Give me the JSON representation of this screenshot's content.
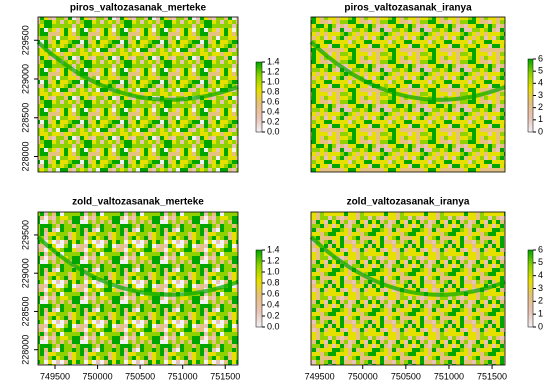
{
  "chart_data": [
    {
      "type": "raster",
      "title": "piros_valtozasanak_merteke",
      "xlim": [
        749300,
        751650
      ],
      "ylim": [
        227800,
        229800
      ],
      "yticks": [
        228000,
        228500,
        229000,
        229500
      ],
      "zlim": [
        0,
        1.4
      ],
      "zticks": [
        {
          "value": 0,
          "label": "0.0"
        },
        {
          "value": 0.2,
          "label": "0.2"
        },
        {
          "value": 0.4,
          "label": "0.4"
        },
        {
          "value": 0.6,
          "label": "0.6"
        },
        {
          "value": 0.8,
          "label": "0.8"
        },
        {
          "value": 1,
          "label": "1.0"
        },
        {
          "value": 1.2,
          "label": "1.2"
        },
        {
          "value": 1.4,
          "label": "1.4"
        }
      ],
      "colors": [
        "#f2f2f2",
        "#e8c4b8",
        "#e6c080",
        "#e6e000",
        "#8fd200",
        "#00a600"
      ]
    },
    {
      "type": "raster",
      "title": "piros_valtozasanak_iranya",
      "xlim": [
        749400,
        751650
      ],
      "ylim": [
        227800,
        229800
      ],
      "zlim": [
        0,
        6
      ],
      "zticks": [
        0,
        1,
        2,
        3,
        4,
        5,
        6
      ],
      "colors": [
        "#f2f2f2",
        "#e8c4b8",
        "#e6c080",
        "#e6e000",
        "#8fd200",
        "#00a600"
      ]
    },
    {
      "type": "raster",
      "title": "zold_valtozasanak_merteke",
      "xlim": [
        749300,
        751650
      ],
      "ylim": [
        227800,
        229800
      ],
      "xticks": [
        749500,
        750000,
        750500,
        751000,
        751500
      ],
      "yticks": [
        228000,
        228500,
        229000,
        229500
      ],
      "zlim": [
        0,
        1.4
      ],
      "zticks": [
        {
          "value": 0,
          "label": "0.0"
        },
        {
          "value": 0.2,
          "label": "0.2"
        },
        {
          "value": 0.4,
          "label": "0.4"
        },
        {
          "value": 0.6,
          "label": "0.6"
        },
        {
          "value": 0.8,
          "label": "0.8"
        },
        {
          "value": 1,
          "label": "1.0"
        },
        {
          "value": 1.2,
          "label": "1.2"
        },
        {
          "value": 1.4,
          "label": "1.4"
        }
      ],
      "colors": [
        "#f2f2f2",
        "#e8c4b8",
        "#e6c080",
        "#e6e000",
        "#8fd200",
        "#00a600"
      ]
    },
    {
      "type": "raster",
      "title": "zold_valtozasanak_iranya",
      "xlim": [
        749400,
        751650
      ],
      "ylim": [
        227800,
        229800
      ],
      "xticks": [
        749500,
        750000,
        750500,
        751000,
        751500
      ],
      "zlim": [
        0,
        6
      ],
      "zticks": [
        0,
        1,
        2,
        3,
        4,
        5,
        6
      ],
      "colors": [
        "#f2f2f2",
        "#e8c4b8",
        "#e6c080",
        "#e6e000",
        "#8fd200",
        "#00a600"
      ]
    }
  ]
}
